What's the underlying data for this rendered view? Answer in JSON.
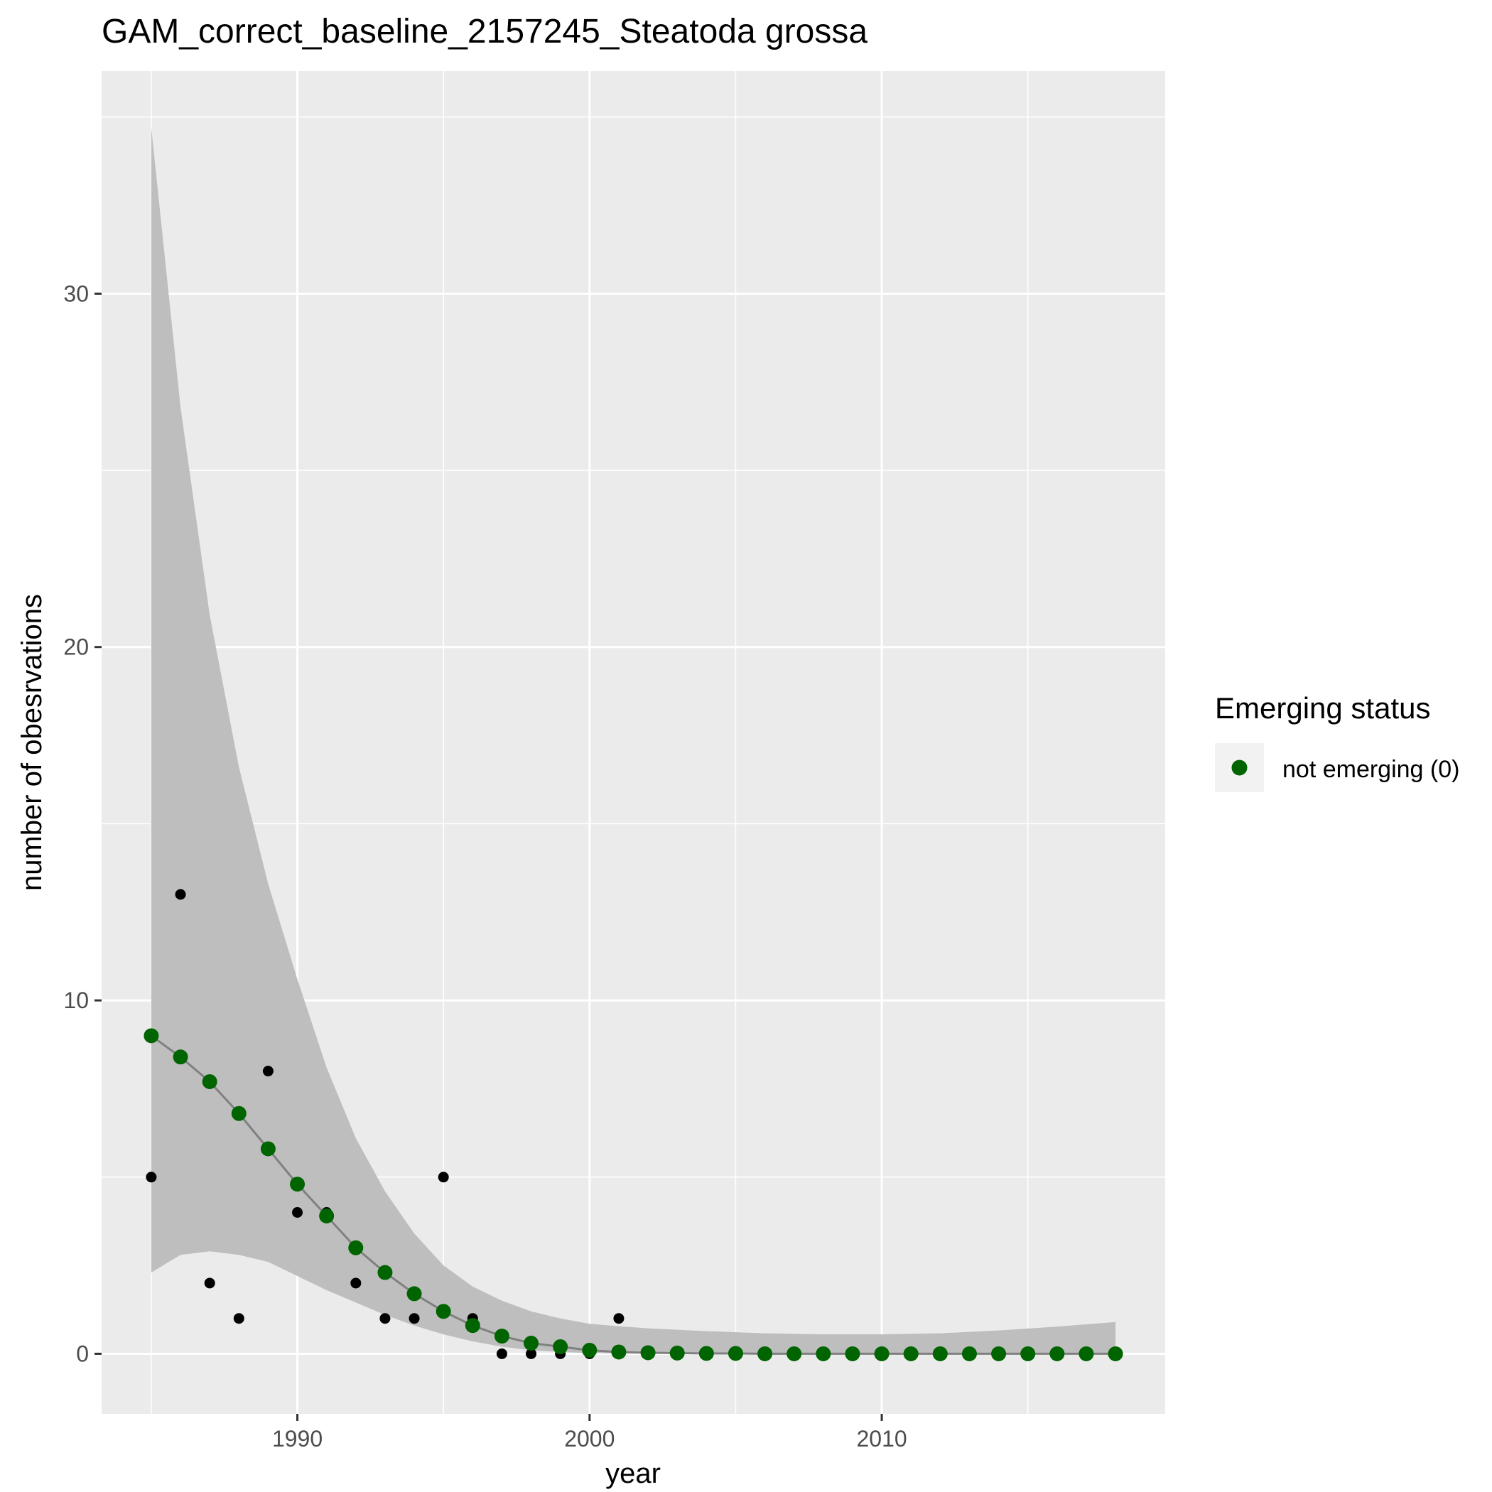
{
  "chart_data": {
    "type": "scatter",
    "title": "GAM_correct_baseline_2157245_Steatoda grossa",
    "xlabel": "year",
    "ylabel": "number of obesrvations",
    "xlim": [
      1983.3,
      2019.7
    ],
    "ylim": [
      -1.7,
      36.3
    ],
    "x_ticks": [
      1990,
      2000,
      2010
    ],
    "y_ticks": [
      0,
      10,
      20,
      30
    ],
    "grid": true,
    "legend": {
      "title": "Emerging status",
      "position": "right",
      "entries": [
        {
          "label": "not emerging (0)",
          "color": "#006400"
        }
      ]
    },
    "colors": {
      "panel": "#ebebeb",
      "grid": "#ffffff",
      "ribbon": "#bebebe",
      "fit_line": "#808080",
      "observed": "#000000",
      "fitted": "#006400"
    },
    "observed": {
      "x": [
        1985,
        1986,
        1987,
        1988,
        1989,
        1990,
        1991,
        1992,
        1993,
        1994,
        1995,
        1996,
        1997,
        1998,
        1999,
        2000,
        2001
      ],
      "y": [
        5,
        13,
        2,
        1,
        8,
        4,
        4,
        2,
        1,
        1,
        5,
        1,
        0,
        0,
        0,
        0,
        1
      ]
    },
    "fitted": {
      "name": "not emerging (0)",
      "x": [
        1985,
        1986,
        1987,
        1988,
        1989,
        1990,
        1991,
        1992,
        1993,
        1994,
        1995,
        1996,
        1997,
        1998,
        1999,
        2000,
        2001,
        2002,
        2003,
        2004,
        2005,
        2006,
        2007,
        2008,
        2009,
        2010,
        2011,
        2012,
        2013,
        2014,
        2015,
        2016,
        2017,
        2018
      ],
      "y": [
        9.0,
        8.4,
        7.7,
        6.8,
        5.8,
        4.8,
        3.9,
        3.0,
        2.3,
        1.7,
        1.2,
        0.8,
        0.5,
        0.3,
        0.2,
        0.1,
        0.05,
        0.03,
        0.02,
        0.01,
        0.01,
        0.0,
        0.0,
        0.0,
        0.0,
        0.0,
        0.0,
        0.0,
        0.0,
        0.0,
        0.0,
        0.0,
        0.0,
        0.0
      ]
    },
    "ribbon": {
      "x": [
        1985,
        1986,
        1987,
        1988,
        1989,
        1990,
        1991,
        1992,
        1993,
        1994,
        1995,
        1996,
        1997,
        1998,
        1999,
        2000,
        2001,
        2002,
        2004,
        2006,
        2008,
        2010,
        2012,
        2014,
        2016,
        2018
      ],
      "upper": [
        34.7,
        26.8,
        20.9,
        16.6,
        13.3,
        10.6,
        8.1,
        6.1,
        4.6,
        3.4,
        2.5,
        1.9,
        1.5,
        1.2,
        1.0,
        0.85,
        0.78,
        0.72,
        0.64,
        0.58,
        0.55,
        0.55,
        0.58,
        0.66,
        0.77,
        0.9
      ],
      "lower": [
        2.3,
        2.8,
        2.9,
        2.8,
        2.6,
        2.2,
        1.8,
        1.45,
        1.1,
        0.8,
        0.55,
        0.35,
        0.2,
        0.1,
        0.05,
        0.02,
        0.01,
        0.0,
        0.0,
        0.0,
        0.0,
        0.0,
        0.0,
        0.0,
        0.0,
        0.0
      ]
    }
  }
}
